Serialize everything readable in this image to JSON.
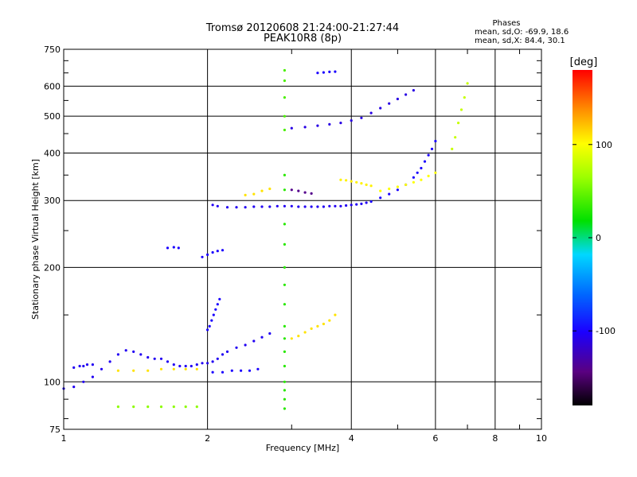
{
  "chart_data": {
    "type": "scatter",
    "title": "Tromsø 20120608 21:24:00-21:27:44",
    "subtitle": "PEAK10R8 (8p)",
    "xlabel": "Frequency [MHz]",
    "ylabel": "Stationary phase Virtual Height [km]",
    "x_scale": "log",
    "y_scale": "log",
    "xlim": [
      1,
      10
    ],
    "ylim": [
      75,
      750
    ],
    "x_ticks": [
      1,
      2,
      4,
      6,
      8,
      10
    ],
    "x_tick_labels": [
      "1",
      "2",
      "4",
      "6",
      "8",
      "10"
    ],
    "y_ticks": [
      75,
      100,
      200,
      300,
      400,
      500,
      600,
      750
    ],
    "y_tick_labels": [
      "75",
      "100",
      "200",
      "300",
      "400",
      "500",
      "600",
      "750"
    ],
    "grid": true,
    "info_header": "Phases",
    "info_lines": [
      "mean, sd,O: -69.9, 18.6",
      "mean, sd,X: 84.4, 30.1"
    ],
    "colorbar": {
      "label": "[deg]",
      "range": [
        -180,
        180
      ],
      "ticks": [
        100,
        0,
        -100
      ],
      "tick_labels": [
        "100",
        "0",
        "-100"
      ]
    },
    "traces": [
      {
        "x": [
          1.0,
          1.05,
          1.1,
          1.15,
          1.2,
          1.25,
          1.3,
          1.35,
          1.4,
          1.45,
          1.5,
          1.55,
          1.6,
          1.65,
          1.7,
          1.75,
          1.8,
          1.85,
          1.9,
          1.95,
          2.0,
          2.05,
          2.1,
          2.15,
          2.2,
          2.3,
          2.4,
          2.5,
          2.6,
          2.7
        ],
        "y": [
          96,
          97,
          100,
          103,
          108,
          113,
          118,
          121,
          120,
          118,
          116,
          115,
          115,
          113,
          111,
          110,
          110,
          110,
          111,
          112,
          112,
          113,
          115,
          118,
          120,
          123,
          125,
          128,
          131,
          134
        ],
        "phase": -105
      },
      {
        "x": [
          1.05,
          1.08,
          1.1,
          1.12,
          1.15
        ],
        "y": [
          109,
          110,
          110,
          111,
          111
        ],
        "phase": -105
      },
      {
        "x": [
          2.05,
          2.15,
          2.25,
          2.35,
          2.45,
          2.55
        ],
        "y": [
          106,
          106,
          107,
          107,
          107,
          108
        ],
        "phase": -100
      },
      {
        "x": [
          2.0,
          2.02,
          2.04,
          2.06,
          2.08,
          2.1,
          2.12
        ],
        "y": [
          137,
          140,
          145,
          150,
          155,
          160,
          165
        ],
        "phase": -100
      },
      {
        "x": [
          1.95,
          2.0,
          2.05,
          2.1,
          2.15
        ],
        "y": [
          213,
          216,
          219,
          221,
          222
        ],
        "phase": -100
      },
      {
        "x": [
          1.65,
          1.7,
          1.74
        ],
        "y": [
          225,
          226,
          225
        ],
        "phase": -100
      },
      {
        "x": [
          2.05,
          2.1,
          2.2,
          2.3,
          2.4,
          2.5,
          2.6,
          2.7,
          2.8,
          2.9,
          3.0,
          3.1,
          3.2,
          3.3,
          3.4,
          3.5,
          3.6,
          3.7,
          3.8,
          3.9,
          4.0,
          4.1,
          4.2,
          4.3
        ],
        "y": [
          292,
          290,
          288,
          288,
          288,
          289,
          289,
          289,
          290,
          290,
          290,
          289,
          289,
          289,
          289,
          289,
          290,
          290,
          290,
          291,
          292,
          293,
          294,
          296
        ],
        "phase": -105
      },
      {
        "x": [
          4.4,
          4.6,
          4.8,
          5.0,
          5.2,
          5.4,
          5.5,
          5.6,
          5.7,
          5.8,
          5.9,
          6.0
        ],
        "y": [
          298,
          305,
          312,
          320,
          330,
          345,
          355,
          365,
          380,
          395,
          410,
          430
        ],
        "phase": -100
      },
      {
        "x": [
          4.6,
          4.8,
          5.0,
          5.2,
          5.4,
          5.6,
          5.8,
          6.0
        ],
        "y": [
          318,
          322,
          326,
          330,
          335,
          340,
          348,
          355
        ],
        "phase": 100
      },
      {
        "x": [
          3.8,
          3.9,
          4.0,
          4.1,
          4.2,
          4.3,
          4.4
        ],
        "y": [
          340,
          339,
          337,
          335,
          333,
          330,
          328
        ],
        "phase": 105
      },
      {
        "x": [
          3.0,
          3.2,
          3.4,
          3.6,
          3.8,
          4.0,
          4.2,
          4.4,
          4.6,
          4.8,
          5.0,
          5.2,
          5.4
        ],
        "y": [
          465,
          468,
          472,
          476,
          480,
          487,
          495,
          510,
          525,
          540,
          555,
          570,
          585
        ],
        "phase": -110
      },
      {
        "x": [
          3.4,
          3.5,
          3.6,
          3.7
        ],
        "y": [
          650,
          652,
          654,
          655
        ],
        "phase": -100
      },
      {
        "x": [
          6.5,
          6.6,
          6.7,
          6.8,
          6.9,
          7.0
        ],
        "y": [
          410,
          440,
          480,
          520,
          560,
          610
        ],
        "phase": 80
      },
      {
        "x": [
          2.9,
          2.9,
          2.9,
          2.9,
          2.9,
          2.9,
          2.9,
          2.9,
          2.9,
          2.9,
          2.9,
          2.9,
          2.9,
          2.9,
          2.9
        ],
        "y": [
          85,
          90,
          95,
          100,
          110,
          120,
          130,
          140,
          160,
          180,
          200,
          230,
          260,
          320,
          350
        ],
        "phase": 30
      },
      {
        "x": [
          2.9,
          2.9,
          2.9,
          2.9,
          2.9
        ],
        "y": [
          460,
          500,
          560,
          620,
          660
        ],
        "phase": 40
      },
      {
        "x": [
          3.0,
          3.1,
          3.2,
          3.3,
          3.4,
          3.5,
          3.6,
          3.7
        ],
        "y": [
          130,
          132,
          135,
          138,
          140,
          142,
          145,
          150
        ],
        "phase": 110
      },
      {
        "x": [
          1.3,
          1.4,
          1.5,
          1.6,
          1.7,
          1.8,
          1.9
        ],
        "y": [
          86,
          86,
          86,
          86,
          86,
          86,
          86
        ],
        "phase": 60
      },
      {
        "x": [
          1.3,
          1.4,
          1.5,
          1.6,
          1.7,
          1.8,
          1.9
        ],
        "y": [
          107,
          107,
          107,
          108,
          108,
          108,
          108
        ],
        "phase": 110
      },
      {
        "x": [
          2.4,
          2.5,
          2.6,
          2.7
        ],
        "y": [
          310,
          312,
          318,
          322
        ],
        "phase": 110
      },
      {
        "x": [
          3.0,
          3.1,
          3.2,
          3.3
        ],
        "y": [
          320,
          318,
          315,
          313
        ],
        "phase": -140
      }
    ]
  }
}
